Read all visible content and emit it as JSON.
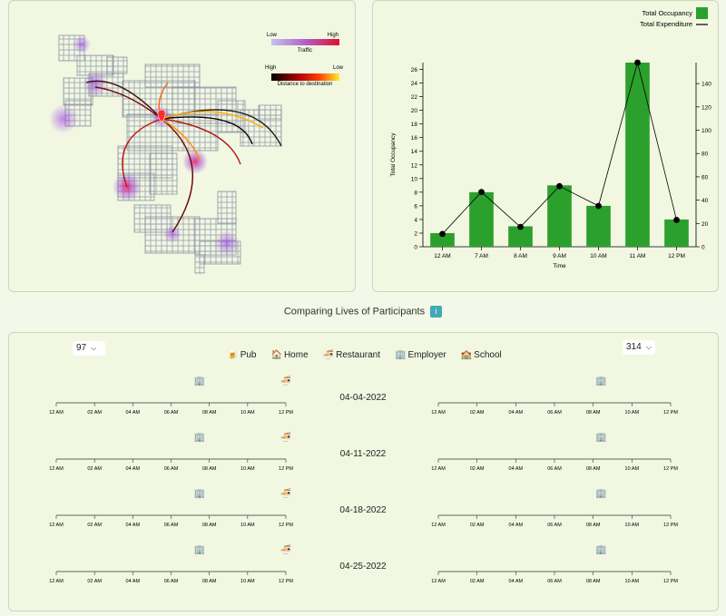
{
  "map": {
    "traffic_low": "Low",
    "traffic_high": "High",
    "traffic_label": "Traffic",
    "dist_high": "High",
    "dist_low": "Low",
    "dist_label": "Distance to destination"
  },
  "chart_data": {
    "type": "bar",
    "categories": [
      "12 AM",
      "7 AM",
      "8 AM",
      "9 AM",
      "10 AM",
      "11 AM",
      "12 PM"
    ],
    "series": [
      {
        "name": "Total Occupancy",
        "type": "bar",
        "axis": "left",
        "color": "#2ca02c",
        "values": [
          2,
          8,
          3,
          9,
          6,
          27,
          4
        ]
      },
      {
        "name": "Total Expenditure",
        "type": "line",
        "axis": "right",
        "color": "#000000",
        "values": [
          11,
          47,
          17,
          52,
          35,
          158,
          23
        ]
      }
    ],
    "ylabel": "Total Occupancy",
    "xlabel": "Time",
    "ylim": [
      0,
      27
    ],
    "y2lim": [
      0,
      158
    ],
    "yticks": [
      0,
      2,
      4,
      6,
      8,
      10,
      12,
      14,
      16,
      18,
      20,
      22,
      24,
      26
    ],
    "y2ticks": [
      0,
      20,
      40,
      60,
      80,
      100,
      120,
      140
    ],
    "legend": "top-right"
  },
  "compare": {
    "title": "Comparing Lives of Participants",
    "info_label": "i",
    "left_participant": "97",
    "right_participant": "314",
    "legend": [
      {
        "icon": "🍺",
        "label": "Pub"
      },
      {
        "icon": "🏠",
        "label": "Home"
      },
      {
        "icon": "🍜",
        "label": "Restaurant"
      },
      {
        "icon": "🏢",
        "label": "Employer"
      },
      {
        "icon": "🏫",
        "label": "School"
      }
    ],
    "time_ticks": [
      "12 AM",
      "02 AM",
      "04 AM",
      "06 AM",
      "08 AM",
      "10 AM",
      "12 PM"
    ],
    "weeks": [
      {
        "date": "04-04-2022",
        "left": [
          {
            "type": "employer",
            "hour": 7.5
          },
          {
            "type": "restaurant",
            "hour": 12.0
          }
        ],
        "right": [
          {
            "type": "employer",
            "hour": 8.4
          }
        ]
      },
      {
        "date": "04-11-2022",
        "left": [
          {
            "type": "employer",
            "hour": 7.5
          },
          {
            "type": "restaurant",
            "hour": 12.0
          }
        ],
        "right": [
          {
            "type": "employer",
            "hour": 8.4
          }
        ]
      },
      {
        "date": "04-18-2022",
        "left": [
          {
            "type": "employer",
            "hour": 7.5
          },
          {
            "type": "restaurant",
            "hour": 12.0
          }
        ],
        "right": [
          {
            "type": "employer",
            "hour": 8.4
          }
        ]
      },
      {
        "date": "04-25-2022",
        "left": [
          {
            "type": "employer",
            "hour": 7.5
          },
          {
            "type": "restaurant",
            "hour": 12.0
          }
        ],
        "right": [
          {
            "type": "employer",
            "hour": 8.4
          }
        ]
      }
    ]
  }
}
